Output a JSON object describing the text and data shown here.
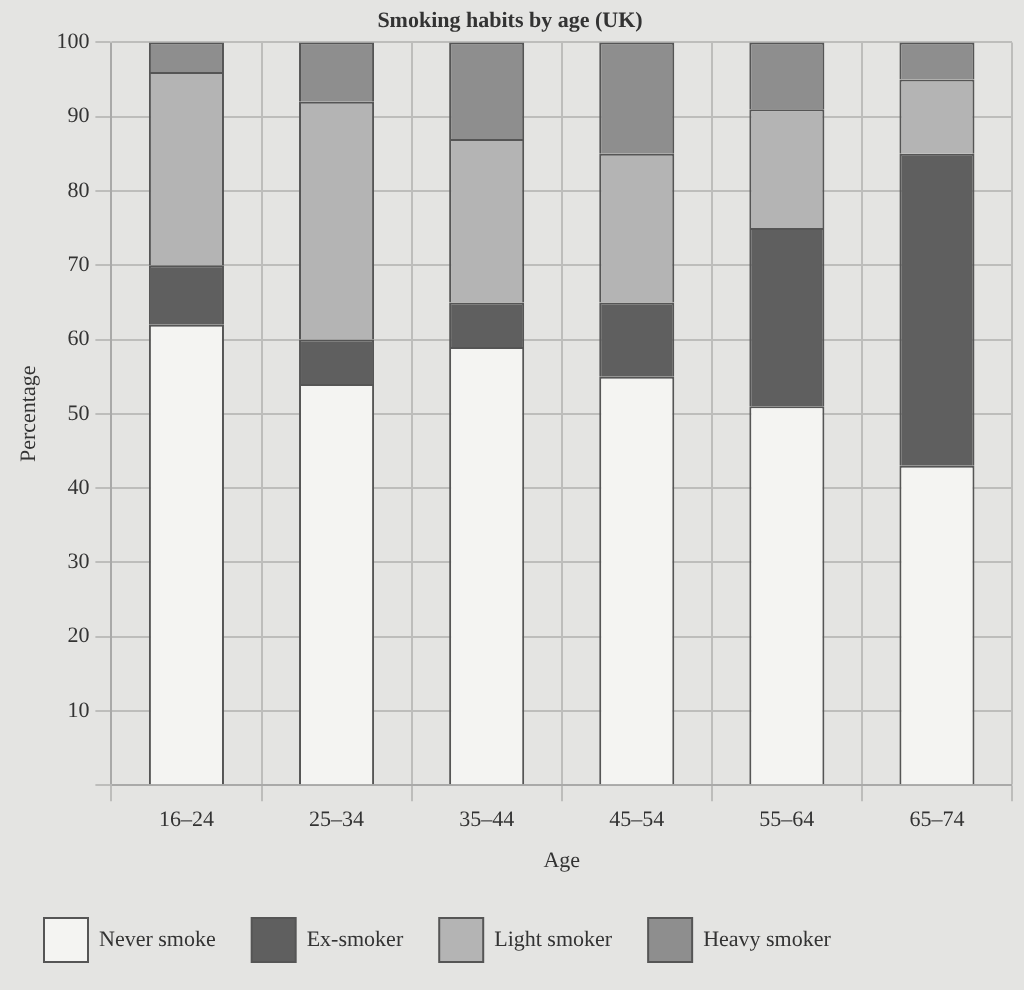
{
  "chart_data": {
    "type": "bar",
    "title": "Smoking habits by age (UK)",
    "xlabel": "Age",
    "ylabel": "Percentage",
    "stacked": true,
    "categories": [
      "16–24",
      "25–34",
      "35–44",
      "45–54",
      "55–64",
      "65–74"
    ],
    "series": [
      {
        "name": "Never smoke",
        "color": "#f4f4f2",
        "values": [
          62,
          54,
          59,
          55,
          51,
          43
        ]
      },
      {
        "name": "Ex-smoker",
        "color": "#5f5f5f",
        "values": [
          8,
          6,
          6,
          10,
          24,
          42
        ]
      },
      {
        "name": "Light smoker",
        "color": "#b4b4b4",
        "values": [
          26,
          32,
          22,
          20,
          16,
          10
        ]
      },
      {
        "name": "Heavy smoker",
        "color": "#8e8e8e",
        "values": [
          4,
          8,
          13,
          15,
          9,
          5
        ]
      }
    ],
    "ylim": [
      0,
      100
    ],
    "yticks": [
      {
        "value": 0,
        "label": null
      },
      10,
      20,
      30,
      40,
      50,
      60,
      70,
      80,
      90,
      100
    ],
    "grid": true,
    "legend": "bottom"
  }
}
